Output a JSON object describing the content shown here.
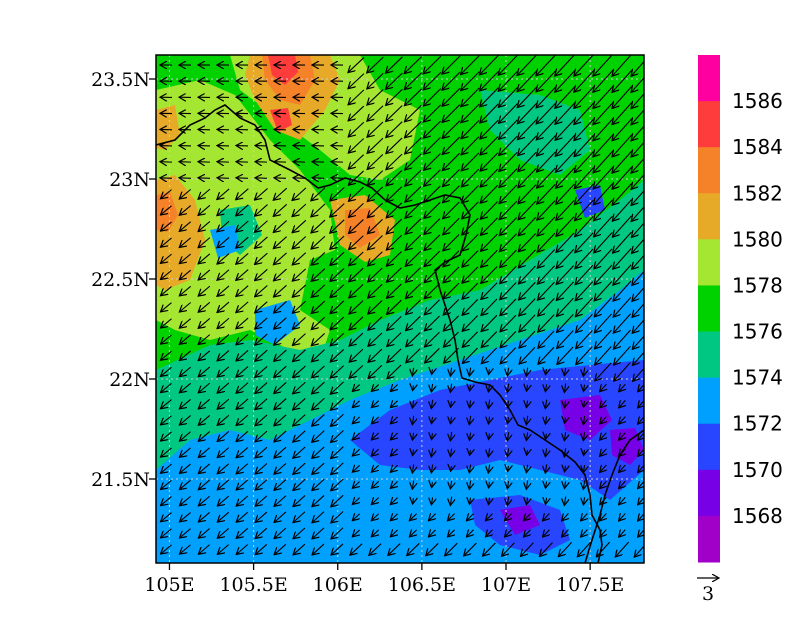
{
  "map": {
    "x_ticks": [
      "105E",
      "105.5E",
      "106E",
      "106.5E",
      "107E",
      "107.5E"
    ],
    "x_tick_values": [
      105.0,
      105.5,
      106.0,
      106.5,
      107.0,
      107.5
    ],
    "y_ticks": [
      "23.5N",
      "23N",
      "22.5N",
      "22N",
      "21.5N"
    ],
    "y_tick_values": [
      23.5,
      23.0,
      22.5,
      22.0,
      21.5
    ],
    "lon_range": [
      104.92,
      107.82
    ],
    "lat_range": [
      21.08,
      23.62
    ],
    "grid": true
  },
  "colorbar": {
    "labels": [
      "1586",
      "1584",
      "1582",
      "1580",
      "1578",
      "1576",
      "1574",
      "1572",
      "1570",
      "1568"
    ],
    "level_values": [
      1586,
      1584,
      1582,
      1580,
      1578,
      1576,
      1574,
      1572,
      1570,
      1568
    ],
    "colors": [
      "#ff00a0",
      "#ff3c3c",
      "#f58228",
      "#e6aa28",
      "#a5e632",
      "#00d200",
      "#00c882",
      "#00a0ff",
      "#2846ff",
      "#7800e6",
      "#a000c8"
    ],
    "placement": "right"
  },
  "vector_reference": {
    "label": "3"
  },
  "palette": {
    "1586": "#ff00a0",
    "1584": "#ff3c3c",
    "1582": "#f58228",
    "1580": "#e6aa28",
    "1578": "#a5e632",
    "1576": "#00d200",
    "1574": "#00c882",
    "1572": "#00a0ff",
    "1570": "#2846ff",
    "1568": "#7800e6",
    "below": "#a000c8"
  }
}
